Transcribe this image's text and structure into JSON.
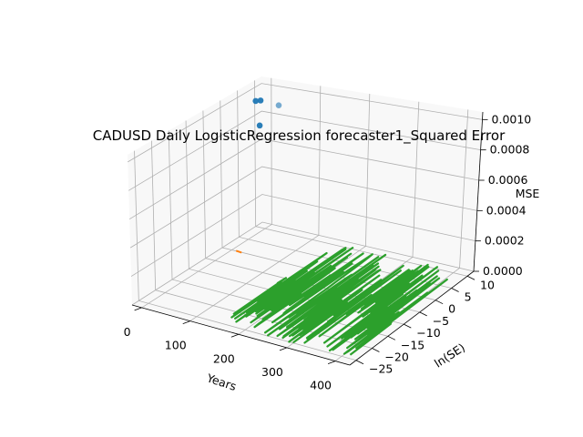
{
  "chart_data": {
    "type": "scatter",
    "projection": "3d",
    "title": "CADUSD Daily LogisticRegression forecaster1_Squared Error",
    "xlabel": "Years",
    "ylabel": "ln(SE)",
    "zlabel": "MSE",
    "xlim": [
      -20,
      430
    ],
    "ylim": [
      -27,
      12
    ],
    "zlim": [
      0,
      0.00105
    ],
    "grid": true,
    "xticks": [
      "0",
      "100",
      "200",
      "300",
      "400"
    ],
    "yticks": [
      "−25",
      "−20",
      "−15",
      "−10",
      "−5",
      "0",
      "5",
      "10"
    ],
    "zticks": [
      "0.0000",
      "0.0002",
      "0.0004",
      "0.0006",
      "0.0008",
      "0.0010"
    ],
    "colors": {
      "points": "#1f77b4",
      "marker": "#ff7f0e",
      "trace": "#2ca02c"
    },
    "series": [
      {
        "kind": "scatter",
        "points": [
          {
            "x": 10,
            "y": 6,
            "z": 0.00098
          },
          {
            "x": 20,
            "y": 6,
            "z": 0.00099
          },
          {
            "x": 50,
            "y": 7,
            "z": 0.00096
          },
          {
            "x": 25,
            "y": 5,
            "z": 0.00083
          }
        ]
      },
      {
        "kind": "marker",
        "points": [
          {
            "x": 15,
            "y": 0,
            "z": 0.0
          }
        ]
      },
      {
        "kind": "line",
        "z": 0.0,
        "x_range": [
          100,
          410
        ],
        "y_range": [
          -25,
          11
        ]
      }
    ]
  }
}
